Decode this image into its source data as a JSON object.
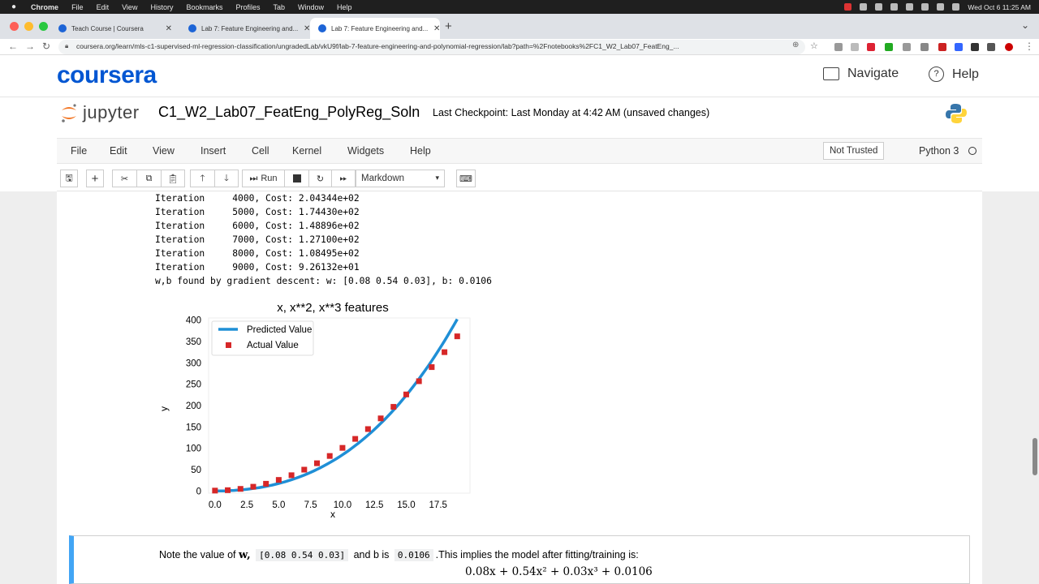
{
  "menubar": {
    "app": "Chrome",
    "items": [
      "File",
      "Edit",
      "View",
      "History",
      "Bookmarks",
      "Profiles",
      "Tab",
      "Window",
      "Help"
    ],
    "clock": "Wed Oct 6  11:25 AM"
  },
  "browser": {
    "tabs": [
      {
        "title": "Teach Course | Coursera"
      },
      {
        "title": "Lab 7: Feature Engineering and..."
      },
      {
        "title": "Lab 7: Feature Engineering and..."
      }
    ],
    "url": "coursera.org/learn/mls-c1-supervised-ml-regression-classification/ungradedLab/vkU9f/lab-7-feature-engineering-and-polynomial-regression/lab?path=%2Fnotebooks%2FC1_W2_Lab07_FeatEng_..."
  },
  "coursera": {
    "logo": "coursera",
    "navigate": "Navigate",
    "help": "Help"
  },
  "jupyter": {
    "logo_text": "jupyter",
    "notebook_name": "C1_W2_Lab07_FeatEng_PolyReg_Soln",
    "checkpoint": "Last Checkpoint: Last Monday at 4:42 AM  (unsaved changes)",
    "menu": [
      "File",
      "Edit",
      "View",
      "Insert",
      "Cell",
      "Kernel",
      "Widgets",
      "Help"
    ],
    "trust": "Not Trusted",
    "kernel": "Python 3",
    "toolbar": {
      "run": "Run",
      "cell_type": "Markdown"
    }
  },
  "output_lines": [
    "Iteration     4000, Cost: 2.04344e+02",
    "Iteration     5000, Cost: 1.74430e+02",
    "Iteration     6000, Cost: 1.48896e+02",
    "Iteration     7000, Cost: 1.27100e+02",
    "Iteration     8000, Cost: 1.08495e+02",
    "Iteration     9000, Cost: 9.26132e+01",
    "w,b found by gradient descent: w: [0.08 0.54 0.03], b: 0.0106"
  ],
  "chart_data": {
    "type": "scatter",
    "title": "x, x**2, x**3 features",
    "xlabel": "x",
    "ylabel": "y",
    "xlim": [
      -0.5,
      20
    ],
    "ylim": [
      -5,
      405
    ],
    "xticks": [
      "0.0",
      "2.5",
      "5.0",
      "7.5",
      "10.0",
      "12.5",
      "15.0",
      "17.5"
    ],
    "yticks": [
      "0",
      "50",
      "100",
      "150",
      "200",
      "250",
      "300",
      "350",
      "400"
    ],
    "legend_position": "top-left",
    "series": [
      {
        "name": "Predicted Value",
        "kind": "line",
        "color": "#1f8fd6",
        "model": {
          "w": [
            0.08,
            0.54,
            0.03
          ],
          "b": 0.0106
        }
      },
      {
        "name": "Actual Value",
        "kind": "points",
        "color": "#d62728",
        "x": [
          0,
          1,
          2,
          3,
          4,
          5,
          6,
          7,
          8,
          9,
          10,
          11,
          12,
          13,
          14,
          15,
          16,
          17,
          18,
          19
        ],
        "y": [
          1,
          2,
          5,
          10,
          17,
          26,
          37,
          50,
          65,
          82,
          101,
          122,
          145,
          170,
          197,
          226,
          257,
          290,
          325,
          362
        ]
      }
    ]
  },
  "markdown": {
    "note_prefix": "Note the value of",
    "w_symbol": "w,",
    "w_value": "[0.08 0.54 0.03]",
    "and_b": "and b is",
    "b_value": "0.0106",
    "suffix": ".This implies the model after fitting/training is:",
    "equation": "0.08x + 0.54x² + 0.03x³ + 0.0106"
  }
}
